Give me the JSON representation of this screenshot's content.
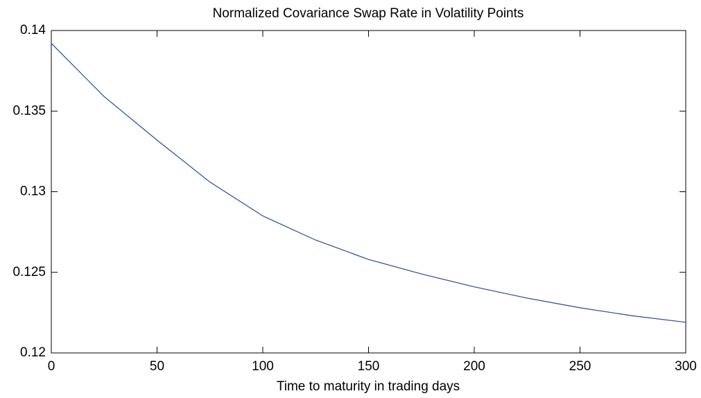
{
  "chart_data": {
    "type": "line",
    "title": "Normalized Covariance Swap Rate in Volatility Points",
    "x_label": "Time to maturity in trading days",
    "x": [
      0,
      25,
      50,
      75,
      100,
      125,
      150,
      175,
      200,
      225,
      250,
      275,
      300
    ],
    "series": [
      {
        "color": "#2a46a0",
        "values": [
          0.1392,
          0.1359,
          0.1332,
          0.1306,
          0.1285,
          0.127,
          0.1258,
          0.1249,
          0.1241,
          0.1234,
          0.1228,
          0.1223,
          0.1219
        ]
      }
    ],
    "xlim": [
      0,
      300
    ],
    "xticks": [
      0,
      50,
      100,
      150,
      200,
      250,
      300
    ],
    "ylim": [
      0.12,
      0.14
    ],
    "yticks": [
      0.12,
      0.125,
      0.13,
      0.135,
      0.14
    ]
  }
}
